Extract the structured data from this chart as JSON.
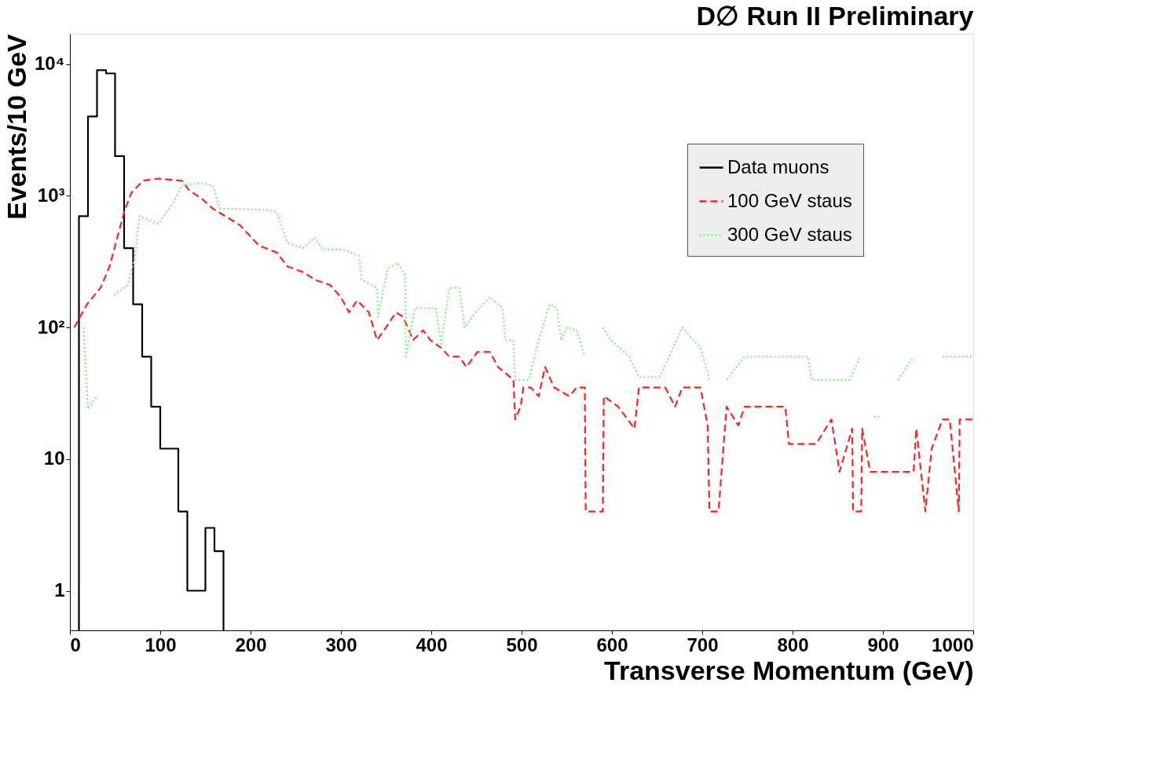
{
  "chart_data": {
    "type": "line",
    "title": "D∅ Run II Preliminary",
    "xlabel": "Transverse Momentum (GeV)",
    "ylabel": "Events/10 GeV",
    "xlim": [
      0,
      1000
    ],
    "xticks": [
      0,
      100,
      200,
      300,
      400,
      500,
      600,
      700,
      800,
      900,
      1000
    ],
    "ylim": [
      0.5,
      17000
    ],
    "yticks": [
      1,
      10,
      {
        "value": 100,
        "label": "10²"
      },
      {
        "value": 1000,
        "label": "10³"
      },
      {
        "value": 10000,
        "label": "10⁴"
      }
    ],
    "log": "y",
    "grid": false,
    "legend": "top right",
    "series": [
      {
        "name": "Data muons",
        "type": "histogram",
        "color": "#000000",
        "line_style": "solid",
        "bins": [
          10,
          20,
          30,
          40,
          50,
          60,
          70,
          80,
          90,
          100,
          110,
          120,
          130,
          140,
          150,
          160,
          170
        ],
        "values": [
          700,
          4000,
          9000,
          8500,
          2000,
          400,
          150,
          60,
          25,
          12,
          12,
          4,
          1,
          1,
          3,
          2
        ]
      },
      {
        "name": "100 GeV staus",
        "color": "#ff2020",
        "line_style": "dashed",
        "x": [
          5,
          19,
          34,
          44,
          51,
          60,
          68,
          81,
          98,
          124,
          132,
          146,
          158,
          175,
          188,
          209,
          229,
          241,
          260,
          271,
          288,
          300,
          309,
          318,
          331,
          340,
          350,
          361,
          369,
          380,
          391,
          399,
          411,
          420,
          431,
          439,
          451,
          465,
          474,
          491,
          493,
          499,
          502,
          510,
          519,
          526,
          536,
          553,
          561,
          570,
          571,
          590,
          591,
          607,
          625,
          630,
          647,
          659,
          670,
          678,
          698,
          706,
          708,
          718,
          727,
          740,
          747,
          792,
          796,
          826,
          843,
          852,
          866,
          867,
          876,
          877,
          886,
          934,
          937,
          947,
          954,
          966,
          974,
          984,
          985,
          1000
        ],
        "values": [
          100,
          150,
          200,
          290,
          440,
          750,
          1050,
          1300,
          1350,
          1300,
          1100,
          950,
          800,
          680,
          600,
          420,
          370,
          290,
          260,
          230,
          210,
          170,
          130,
          160,
          130,
          80,
          100,
          130,
          120,
          80,
          95,
          80,
          70,
          60,
          60,
          50,
          65,
          65,
          50,
          40,
          20,
          25,
          35,
          35,
          30,
          50,
          35,
          30,
          35,
          35,
          4,
          4,
          30,
          25,
          17,
          35,
          35,
          35,
          25,
          35,
          35,
          18,
          4,
          4,
          25,
          18,
          25,
          25,
          13,
          13,
          20,
          8,
          17,
          4,
          4,
          17,
          8,
          8,
          17,
          4,
          12,
          20,
          20,
          4,
          20,
          20
        ]
      },
      {
        "name": "300 GeV staus",
        "color": "#7cf07c",
        "line_style": "dotted",
        "x": [
          15,
          20,
          30,
          40,
          49,
          64,
          72,
          77,
          98,
          115,
          124,
          145,
          158,
          166,
          220,
          229,
          241,
          258,
          271,
          280,
          303,
          320,
          323,
          340,
          341,
          352,
          363,
          371,
          372,
          382,
          405,
          411,
          420,
          431,
          437,
          451,
          465,
          479,
          482,
          491,
          493,
          508,
          519,
          531,
          539,
          544,
          550,
          561,
          570,
          580,
          590,
          599,
          619,
          630,
          653,
          678,
          698,
          708,
          720,
          727,
          747,
          817,
          821,
          846,
          863,
          875,
          885,
          890,
          899,
          905,
          917,
          934,
          945,
          966,
          988,
          1000
        ],
        "values": [
          100,
          24,
          30,
          null,
          175,
          210,
          340,
          700,
          610,
          900,
          1200,
          1250,
          1200,
          800,
          780,
          750,
          440,
          400,
          480,
          390,
          390,
          350,
          230,
          200,
          120,
          280,
          310,
          250,
          60,
          140,
          140,
          75,
          200,
          200,
          100,
          135,
          170,
          140,
          80,
          80,
          40,
          40,
          80,
          150,
          140,
          80,
          100,
          95,
          60,
          null,
          100,
          80,
          60,
          42,
          42,
          100,
          70,
          40,
          null,
          40,
          60,
          60,
          40,
          40,
          40,
          60,
          null,
          21,
          21,
          null,
          40,
          60,
          null,
          60,
          60,
          60
        ]
      }
    ]
  }
}
